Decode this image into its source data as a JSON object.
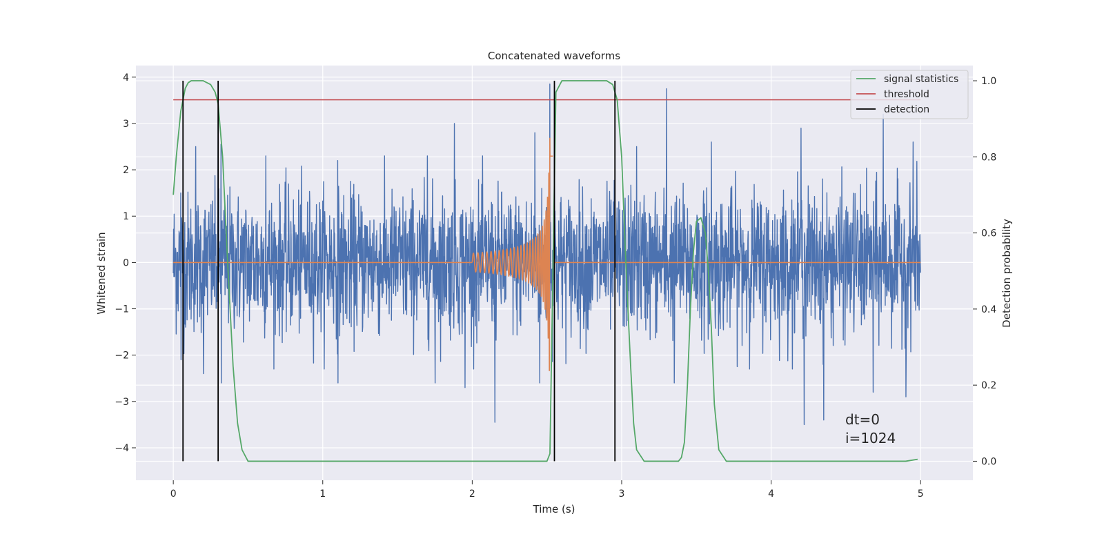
{
  "chart_data": {
    "type": "line",
    "title": "Concatenated waveforms",
    "xlabel": "Time (s)",
    "ylabel": "Whitened strain",
    "ylabel_right": "Detection probability",
    "xlim": [
      -0.25,
      5.35
    ],
    "ylim": [
      -4.7,
      4.25
    ],
    "ylim_right": [
      -0.05,
      1.04
    ],
    "x_ticks": [
      0,
      1,
      2,
      3,
      4,
      5
    ],
    "y_ticks": [
      -4,
      -3,
      -2,
      -1,
      0,
      1,
      2,
      3,
      4
    ],
    "y_tick_labels": [
      "−4",
      "−3",
      "−2",
      "−1",
      "0",
      "1",
      "2",
      "3",
      "4"
    ],
    "y_right_ticks": [
      0.0,
      0.2,
      0.4,
      0.6,
      0.8,
      1.0
    ],
    "y_right_tick_labels": [
      "0.0",
      "0.2",
      "0.4",
      "0.6",
      "0.8",
      "1.0"
    ],
    "grid": true,
    "legend_position": "top-right",
    "colors": {
      "strain": "#4c72b0",
      "waveform": "#dd8452",
      "signal_statistics": "#55a868",
      "threshold": "#c44e52",
      "detection": "#000000",
      "axes_bg": "#eaeaf2",
      "grid": "#ffffff"
    },
    "series": [
      {
        "name": "signal statistics",
        "axis": "right",
        "x": [
          0.0,
          0.02,
          0.05,
          0.08,
          0.1,
          0.12,
          0.15,
          0.2,
          0.25,
          0.28,
          0.3,
          0.33,
          0.36,
          0.4,
          0.43,
          0.46,
          0.5,
          1.0,
          1.5,
          2.0,
          2.5,
          2.52,
          2.54,
          2.56,
          2.6,
          2.7,
          2.8,
          2.9,
          2.94,
          2.97,
          3.0,
          3.03,
          3.06,
          3.08,
          3.1,
          3.15,
          3.38,
          3.4,
          3.42,
          3.44,
          3.46,
          3.48,
          3.5,
          3.53,
          3.56,
          3.58,
          3.6,
          3.62,
          3.65,
          3.7,
          4.0,
          4.5,
          4.9,
          4.98
        ],
        "values": [
          0.7,
          0.8,
          0.92,
          0.98,
          0.995,
          1.0,
          1.0,
          1.0,
          0.99,
          0.97,
          0.94,
          0.8,
          0.55,
          0.25,
          0.1,
          0.03,
          0.0,
          0.0,
          0.0,
          0.0,
          0.0,
          0.02,
          0.5,
          0.97,
          1.0,
          1.0,
          1.0,
          1.0,
          0.99,
          0.95,
          0.8,
          0.5,
          0.25,
          0.1,
          0.03,
          0.0,
          0.0,
          0.01,
          0.05,
          0.2,
          0.4,
          0.55,
          0.63,
          0.64,
          0.6,
          0.5,
          0.35,
          0.15,
          0.03,
          0.0,
          0.0,
          0.0,
          0.0,
          0.005
        ]
      },
      {
        "name": "threshold",
        "axis": "right",
        "x": [
          0.0,
          5.0
        ],
        "values": [
          0.95,
          0.95
        ]
      },
      {
        "name": "detection",
        "axis": "right",
        "segments": [
          0.065,
          0.3,
          2.55,
          2.955
        ],
        "y_range": [
          0.0,
          1.0
        ]
      }
    ],
    "strain_noise": {
      "axis": "left",
      "x_range": [
        0.0,
        5.0
      ],
      "typical_range": [
        -1.0,
        1.0
      ],
      "peaks": [
        {
          "x": 0.05,
          "y": 1.5
        },
        {
          "x": 0.15,
          "y": 2.5
        },
        {
          "x": 0.3,
          "y": 3.1
        },
        {
          "x": 0.32,
          "y": 2.55
        },
        {
          "x": 0.62,
          "y": 2.3
        },
        {
          "x": 1.1,
          "y": 2.2
        },
        {
          "x": 1.7,
          "y": 2.3
        },
        {
          "x": 1.88,
          "y": 3.0
        },
        {
          "x": 2.42,
          "y": 2.8
        },
        {
          "x": 2.52,
          "y": 3.85
        },
        {
          "x": 2.55,
          "y": 3.8
        },
        {
          "x": 3.1,
          "y": 2.5
        },
        {
          "x": 3.3,
          "y": 3.75
        },
        {
          "x": 3.6,
          "y": 2.6
        },
        {
          "x": 4.2,
          "y": 2.9
        },
        {
          "x": 4.75,
          "y": 3.2
        },
        {
          "x": 4.95,
          "y": 2.6
        }
      ],
      "troughs": [
        {
          "x": 0.05,
          "y": -2.1
        },
        {
          "x": 0.2,
          "y": -2.4
        },
        {
          "x": 0.32,
          "y": -2.6
        },
        {
          "x": 1.1,
          "y": -2.6
        },
        {
          "x": 1.75,
          "y": -2.6
        },
        {
          "x": 1.95,
          "y": -2.7
        },
        {
          "x": 2.15,
          "y": -3.45
        },
        {
          "x": 2.45,
          "y": -2.6
        },
        {
          "x": 3.35,
          "y": -2.6
        },
        {
          "x": 4.22,
          "y": -3.5
        },
        {
          "x": 4.35,
          "y": -3.4
        },
        {
          "x": 4.68,
          "y": -2.8
        },
        {
          "x": 4.9,
          "y": -2.9
        }
      ]
    },
    "waveform": {
      "axis": "left",
      "x_start": 2.0,
      "x_merger": 2.52,
      "x_end": 2.54,
      "peak_amplitude": 2.7,
      "start_amplitude": 0.2
    },
    "annotation": [
      "dt=0",
      "i=1024"
    ]
  }
}
